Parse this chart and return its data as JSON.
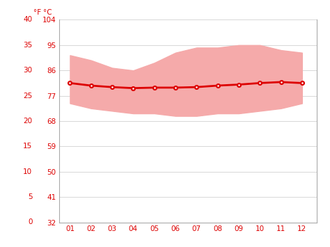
{
  "months": [
    1,
    2,
    3,
    4,
    5,
    6,
    7,
    8,
    9,
    10,
    11,
    12
  ],
  "month_labels": [
    "01",
    "02",
    "03",
    "04",
    "05",
    "06",
    "07",
    "08",
    "09",
    "10",
    "11",
    "12"
  ],
  "avg_temp_c": [
    27.5,
    27.0,
    26.7,
    26.5,
    26.6,
    26.6,
    26.7,
    27.0,
    27.2,
    27.5,
    27.7,
    27.5
  ],
  "max_temp_c": [
    33.0,
    32.0,
    30.5,
    30.0,
    31.5,
    33.5,
    34.5,
    34.5,
    35.0,
    35.0,
    34.0,
    33.5
  ],
  "min_temp_c": [
    23.5,
    22.5,
    22.0,
    21.5,
    21.5,
    21.0,
    21.0,
    21.5,
    21.5,
    22.0,
    22.5,
    23.5
  ],
  "line_color": "#dd0000",
  "fill_color": "#f5aaaa",
  "bg_color": "#ffffff",
  "grid_color": "#c8c8c8",
  "label_color": "#dd0000",
  "spine_color": "#aaaaaa",
  "ylim_c": [
    0,
    40
  ],
  "yticks_c": [
    0,
    5,
    10,
    15,
    20,
    25,
    30,
    35,
    40
  ],
  "yticks_f": [
    32,
    41,
    50,
    59,
    68,
    77,
    86,
    95,
    104
  ],
  "label_f": "°F",
  "label_c": "°C",
  "tick_fontsize": 7.5,
  "unit_fontsize": 7.5
}
